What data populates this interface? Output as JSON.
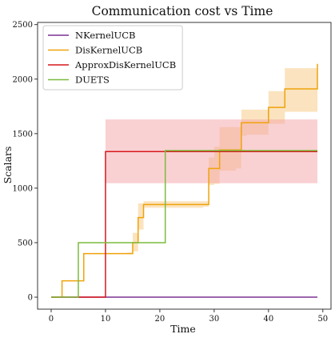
{
  "chart_data": {
    "type": "line",
    "title": "Communication cost vs Time",
    "xlabel": "Time",
    "ylabel": "Scalars",
    "xlim": [
      -2.5,
      51.5
    ],
    "ylim": [
      -110,
      2520
    ],
    "xticks": [
      0,
      10,
      20,
      30,
      40,
      50
    ],
    "yticks": [
      0,
      500,
      1000,
      1500,
      2000,
      2500
    ],
    "legend_position": "top-left",
    "grid": false,
    "series": [
      {
        "name": "NKernelUCB",
        "color": "#7b3294",
        "x": [
          0,
          49
        ],
        "y": [
          0,
          0
        ],
        "step": false
      },
      {
        "name": "DisKernelUCB",
        "color": "#f0a30a",
        "x": [
          0,
          1,
          2,
          3,
          4,
          5,
          6,
          7,
          8,
          9,
          10,
          11,
          12,
          13,
          14,
          15,
          16,
          17,
          18,
          19,
          20,
          21,
          22,
          23,
          24,
          25,
          26,
          27,
          28,
          29,
          30,
          31,
          32,
          33,
          34,
          35,
          36,
          37,
          38,
          39,
          40,
          41,
          42,
          43,
          44,
          45,
          46,
          47,
          48,
          49
        ],
        "y": [
          0,
          0,
          150,
          150,
          150,
          150,
          400,
          400,
          400,
          400,
          400,
          400,
          400,
          400,
          400,
          500,
          730,
          850,
          850,
          850,
          850,
          850,
          850,
          850,
          850,
          850,
          850,
          850,
          850,
          1180,
          1180,
          1350,
          1350,
          1350,
          1350,
          1600,
          1600,
          1600,
          1600,
          1600,
          1740,
          1740,
          1740,
          1910,
          1910,
          1910,
          1910,
          1910,
          1910,
          2140
        ],
        "band_lower": [
          0,
          0,
          150,
          150,
          150,
          150,
          400,
          400,
          400,
          400,
          400,
          400,
          400,
          400,
          400,
          420,
          620,
          820,
          820,
          820,
          820,
          820,
          820,
          820,
          820,
          820,
          820,
          820,
          830,
          1030,
          1040,
          1160,
          1160,
          1160,
          1180,
          1480,
          1490,
          1490,
          1490,
          1490,
          1590,
          1590,
          1590,
          1700,
          1700,
          1700,
          1700,
          1700,
          1700,
          1900
        ],
        "band_upper": [
          0,
          0,
          150,
          150,
          150,
          150,
          400,
          400,
          400,
          400,
          400,
          400,
          400,
          400,
          410,
          590,
          860,
          880,
          880,
          880,
          880,
          880,
          880,
          880,
          880,
          880,
          880,
          880,
          880,
          1280,
          1380,
          1560,
          1560,
          1560,
          1560,
          1720,
          1720,
          1720,
          1720,
          1720,
          1890,
          1890,
          1890,
          2100,
          2100,
          2100,
          2100,
          2100,
          2100,
          2380
        ],
        "band_color": "#f5c77e",
        "step": true
      },
      {
        "name": "ApproxDisKernelUCB",
        "color": "#d7191c",
        "x": [
          0,
          9,
          10,
          49
        ],
        "y": [
          0,
          0,
          1335,
          1335
        ],
        "band_lower": [
          0,
          0,
          1045,
          1045
        ],
        "band_upper": [
          0,
          0,
          1630,
          1630
        ],
        "band_color": "#f4a4a8",
        "step": true
      },
      {
        "name": "DUETS",
        "color": "#7cbb3f",
        "x": [
          0,
          4,
          5,
          20,
          21,
          49
        ],
        "y": [
          0,
          0,
          500,
          500,
          1345,
          1345
        ],
        "step": true
      }
    ]
  }
}
